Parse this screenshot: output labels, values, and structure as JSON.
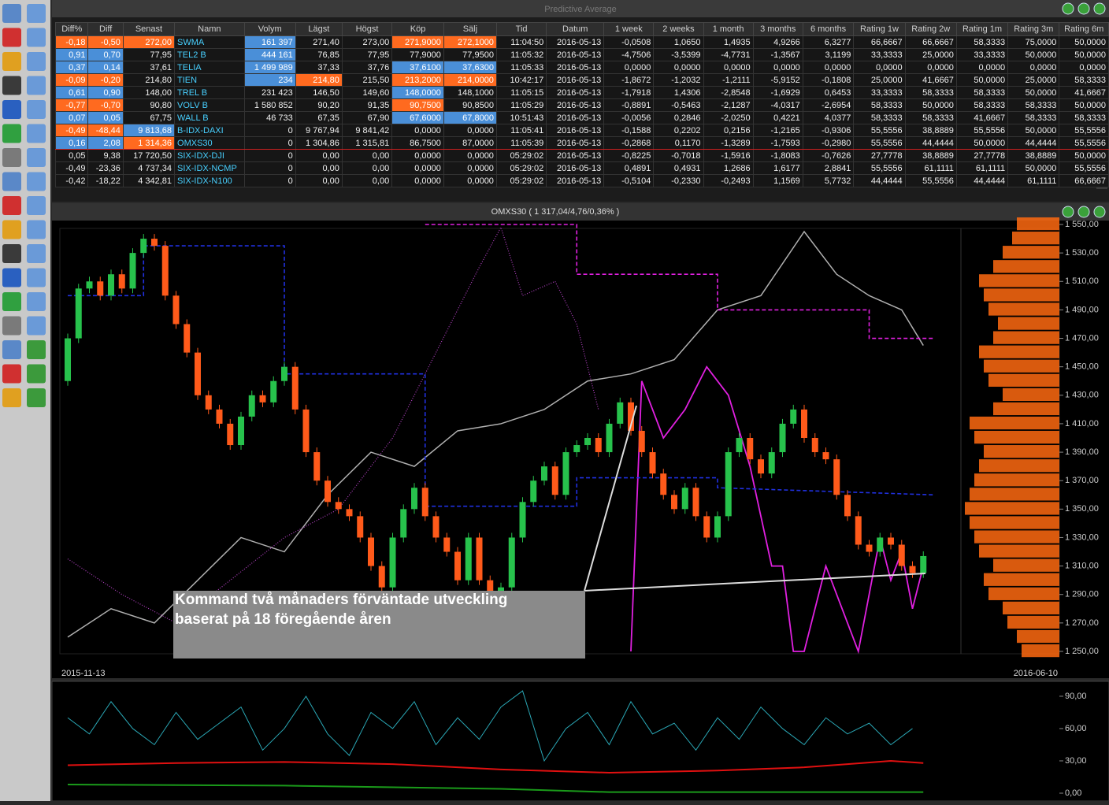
{
  "window_title": "Predictive Average",
  "table": {
    "columns": [
      "Diff%",
      "Diff",
      "Senast",
      "Namn",
      "Volym",
      "Lägst",
      "Högst",
      "Köp",
      "Sälj",
      "Tid",
      "Datum",
      "1 week",
      "2 weeks",
      "1 month",
      "3 months",
      "6 months",
      "Rating 1w",
      "Rating 2w",
      "Rating 1m",
      "Rating 3m",
      "Rating 6m"
    ],
    "rows": [
      [
        "-0,18",
        "-0,50",
        "272,00",
        "SWMA",
        "161 397",
        "271,40",
        "273,00",
        "271,9000",
        "272,1000",
        "11:04:50",
        "2016-05-13",
        "-0,0508",
        "1,0650",
        "1,4935",
        "4,9266",
        "6,3277",
        "66,6667",
        "66,6667",
        "58,3333",
        "75,0000",
        "50,0000"
      ],
      [
        "0,91",
        "0,70",
        "77,95",
        "TEL2 B",
        "444 161",
        "76,85",
        "77,95",
        "77,9000",
        "77,9500",
        "11:05:32",
        "2016-05-13",
        "-4,7506",
        "-3,5399",
        "-4,7731",
        "-1,3567",
        "3,1199",
        "33,3333",
        "25,0000",
        "33,3333",
        "50,0000",
        "50,0000"
      ],
      [
        "0,37",
        "0,14",
        "37,61",
        "TELIA",
        "1 499 989",
        "37,33",
        "37,76",
        "37,6100",
        "37,6300",
        "11:05:33",
        "2016-05-13",
        "0,0000",
        "0,0000",
        "0,0000",
        "0,0000",
        "0,0000",
        "0,0000",
        "0,0000",
        "0,0000",
        "0,0000",
        "0,0000"
      ],
      [
        "-0,09",
        "-0,20",
        "214,80",
        "TIEN",
        "234",
        "214,80",
        "215,50",
        "213,2000",
        "214,0000",
        "10:42:17",
        "2016-05-13",
        "-1,8672",
        "-1,2032",
        "-1,2111",
        "-5,9152",
        "-0,1808",
        "25,0000",
        "41,6667",
        "50,0000",
        "25,0000",
        "58,3333"
      ],
      [
        "0,61",
        "0,90",
        "148,00",
        "TREL B",
        "231 423",
        "146,50",
        "149,60",
        "148,0000",
        "148,1000",
        "11:05:15",
        "2016-05-13",
        "-1,7918",
        "1,4306",
        "-2,8548",
        "-1,6929",
        "0,6453",
        "33,3333",
        "58,3333",
        "58,3333",
        "50,0000",
        "41,6667"
      ],
      [
        "-0,77",
        "-0,70",
        "90,80",
        "VOLV B",
        "1 580 852",
        "90,20",
        "91,35",
        "90,7500",
        "90,8500",
        "11:05:29",
        "2016-05-13",
        "-0,8891",
        "-0,5463",
        "-2,1287",
        "-4,0317",
        "-2,6954",
        "58,3333",
        "50,0000",
        "58,3333",
        "58,3333",
        "50,0000"
      ],
      [
        "0,07",
        "0,05",
        "67,75",
        "WALL B",
        "46 733",
        "67,35",
        "67,90",
        "67,6000",
        "67,8000",
        "10:51:43",
        "2016-05-13",
        "-0,0056",
        "0,2846",
        "-2,0250",
        "0,4221",
        "4,0377",
        "58,3333",
        "58,3333",
        "41,6667",
        "58,3333",
        "58,3333"
      ],
      [
        "-0,49",
        "-48,44",
        "9 813,68",
        "B-IDX-DAXI",
        "0",
        "9 767,94",
        "9 841,42",
        "0,0000",
        "0,0000",
        "11:05:41",
        "2016-05-13",
        "-0,1588",
        "0,2202",
        "0,2156",
        "-1,2165",
        "-0,9306",
        "55,5556",
        "38,8889",
        "55,5556",
        "50,0000",
        "55,5556"
      ],
      [
        "0,16",
        "2,08",
        "1 314,36",
        "OMXS30",
        "0",
        "1 304,86",
        "1 315,81",
        "86,7500",
        "87,0000",
        "11:05:39",
        "2016-05-13",
        "-0,2868",
        "0,1170",
        "-1,3289",
        "-1,7593",
        "-0,2980",
        "55,5556",
        "44,4444",
        "50,0000",
        "44,4444",
        "55,5556"
      ],
      [
        "0,05",
        "9,38",
        "17 720,50",
        "SIX-IDX-DJI",
        "0",
        "0,00",
        "0,00",
        "0,0000",
        "0,0000",
        "05:29:02",
        "2016-05-13",
        "-0,8225",
        "-0,7018",
        "-1,5916",
        "-1,8083",
        "-0,7626",
        "27,7778",
        "38,8889",
        "27,7778",
        "38,8889",
        "50,0000"
      ],
      [
        "-0,49",
        "-23,36",
        "4 737,34",
        "SIX-IDX-NCMP",
        "0",
        "0,00",
        "0,00",
        "0,0000",
        "0,0000",
        "05:29:02",
        "2016-05-13",
        "0,4891",
        "0,4931",
        "1,2686",
        "1,6177",
        "2,8841",
        "55,5556",
        "61,1111",
        "61,1111",
        "50,0000",
        "55,5556"
      ],
      [
        "-0,42",
        "-18,22",
        "4 342,81",
        "SIX-IDX-N100",
        "0",
        "0,00",
        "0,00",
        "0,0000",
        "0,0000",
        "05:29:02",
        "2016-05-13",
        "-0,5104",
        "-0,2330",
        "-0,2493",
        "1,1569",
        "5,7732",
        "44,4444",
        "55,5556",
        "44,4444",
        "61,1111",
        "66,6667"
      ]
    ]
  },
  "chart_data": [
    {
      "type": "candlestick",
      "title": "OMXS30 ( 1 317,04/4,76/0,36% )",
      "date_labels": [
        "2015-11-13",
        "2016-06-10"
      ],
      "annotation": [
        "Kommand två månaders förväntade utveckling",
        "baserat på 18 föregående åren"
      ],
      "ylim": [
        1250,
        1550
      ],
      "yticks": [
        {
          "value": 1550,
          "label": "1 550,00"
        },
        {
          "value": 1530,
          "label": "1 530,00"
        },
        {
          "value": 1510,
          "label": "1 510,00"
        },
        {
          "value": 1490,
          "label": "1 490,00"
        },
        {
          "value": 1470,
          "label": "1 470,00"
        },
        {
          "value": 1450,
          "label": "1 450,00"
        },
        {
          "value": 1430,
          "label": "1 430,00"
        },
        {
          "value": 1410,
          "label": "1 410,00"
        },
        {
          "value": 1390,
          "label": "1 390,00"
        },
        {
          "value": 1370,
          "label": "1 370,00"
        },
        {
          "value": 1350,
          "label": "1 350,00"
        },
        {
          "value": 1330,
          "label": "1 330,00"
        },
        {
          "value": 1310,
          "label": "1 310,00"
        },
        {
          "value": 1290,
          "label": "1 290,00"
        },
        {
          "value": 1270,
          "label": "1 270,00"
        },
        {
          "value": 1250,
          "label": "1 250,00"
        }
      ],
      "up_color": "#27c24c",
      "down_color": "#ff5a1a",
      "open": [
        1440,
        1470,
        1505,
        1510,
        1500,
        1515,
        1505,
        1530,
        1540,
        1535,
        1500,
        1480,
        1460,
        1430,
        1420,
        1410,
        1395,
        1415,
        1430,
        1425,
        1440,
        1450,
        1420,
        1390,
        1370,
        1355,
        1350,
        1345,
        1330,
        1310,
        1295,
        1330,
        1350,
        1365,
        1345,
        1330,
        1320,
        1300,
        1330,
        1300,
        1285,
        1295,
        1330,
        1355,
        1370,
        1380,
        1360,
        1390,
        1395,
        1400,
        1390,
        1410,
        1425,
        1405,
        1390,
        1375,
        1360,
        1350,
        1365,
        1345,
        1330,
        1345,
        1390,
        1400,
        1385,
        1375,
        1390,
        1410,
        1420,
        1400,
        1390,
        1385,
        1360,
        1345,
        1325,
        1320,
        1330,
        1325,
        1310,
        1305
      ],
      "close": [
        1470,
        1505,
        1510,
        1500,
        1515,
        1505,
        1530,
        1540,
        1535,
        1500,
        1480,
        1460,
        1430,
        1420,
        1410,
        1395,
        1415,
        1430,
        1425,
        1440,
        1450,
        1420,
        1390,
        1370,
        1355,
        1350,
        1345,
        1330,
        1310,
        1295,
        1330,
        1350,
        1365,
        1345,
        1330,
        1320,
        1300,
        1330,
        1300,
        1285,
        1295,
        1330,
        1355,
        1370,
        1380,
        1360,
        1390,
        1395,
        1400,
        1390,
        1410,
        1425,
        1405,
        1390,
        1375,
        1360,
        1350,
        1365,
        1345,
        1330,
        1345,
        1390,
        1400,
        1385,
        1375,
        1390,
        1410,
        1420,
        1400,
        1390,
        1385,
        1360,
        1345,
        1325,
        1320,
        1330,
        1325,
        1310,
        1305,
        1317
      ],
      "lines": [
        {
          "color": "#b0b0b0",
          "dash": "none",
          "width": 1.5,
          "x": [
            0,
            4,
            8,
            12,
            16,
            20,
            24,
            28,
            32,
            36,
            40,
            44,
            48,
            52,
            56,
            60,
            64,
            68,
            71,
            74,
            77,
            79
          ],
          "values": [
            1260,
            1280,
            1270,
            1300,
            1330,
            1320,
            1360,
            1390,
            1380,
            1405,
            1410,
            1420,
            1440,
            1445,
            1455,
            1490,
            1500,
            1545,
            1515,
            1500,
            1490,
            1465
          ]
        },
        {
          "color": "#b040c0",
          "dash": "1 2",
          "width": 1.2,
          "x": [
            0,
            5,
            10,
            15,
            20,
            25,
            30,
            34,
            38,
            40,
            42,
            45,
            47,
            49
          ],
          "values": [
            1315,
            1290,
            1270,
            1300,
            1330,
            1350,
            1400,
            1460,
            1520,
            1548,
            1500,
            1510,
            1480,
            1420
          ]
        },
        {
          "color": "#e020e0",
          "dash": "none",
          "width": 1.8,
          "x": [
            52,
            53,
            55,
            57,
            59,
            61,
            63,
            65,
            66,
            67,
            68,
            70,
            72,
            73,
            75,
            76,
            77,
            78,
            79
          ],
          "values": [
            1250,
            1440,
            1400,
            1420,
            1450,
            1430,
            1380,
            1310,
            1310,
            1250,
            1250,
            1310,
            1270,
            1250,
            1330,
            1300,
            1320,
            1280,
            1310
          ]
        },
        {
          "color": "#e020e0",
          "dash": "5 3",
          "width": 1.6,
          "x": [
            33,
            47,
            47,
            60,
            60,
            74,
            74,
            80
          ],
          "values": [
            1550,
            1550,
            1515,
            1515,
            1490,
            1490,
            1470,
            1470
          ]
        },
        {
          "color": "#2030e0",
          "dash": "5 3",
          "width": 1.6,
          "x": [
            0,
            7,
            7,
            20,
            20,
            33,
            33,
            47,
            47,
            60,
            60,
            80
          ],
          "values": [
            1500,
            1500,
            1535,
            1535,
            1445,
            1445,
            1352,
            1352,
            1372,
            1372,
            1365,
            1360
          ]
        }
      ],
      "volume_profile": {
        "color": "#ff6a10",
        "levels": [
          1250,
          1260,
          1270,
          1280,
          1290,
          1300,
          1310,
          1320,
          1330,
          1340,
          1350,
          1360,
          1370,
          1380,
          1390,
          1400,
          1410,
          1420,
          1430,
          1440,
          1450,
          1460,
          1470,
          1480,
          1490,
          1500,
          1510,
          1520,
          1530,
          1540,
          1550
        ],
        "values": [
          40,
          45,
          55,
          60,
          75,
          80,
          70,
          85,
          90,
          95,
          100,
          95,
          90,
          85,
          80,
          90,
          95,
          70,
          60,
          75,
          80,
          85,
          70,
          65,
          75,
          80,
          85,
          70,
          60,
          50,
          45
        ]
      }
    },
    {
      "type": "line",
      "ylim": [
        0,
        98
      ],
      "yticks": [
        {
          "value": 0,
          "label": "0,00"
        },
        {
          "value": 30,
          "label": "30,00"
        },
        {
          "value": 60,
          "label": "60,00"
        },
        {
          "value": 90,
          "label": "90,00"
        }
      ],
      "series": [
        {
          "color": "#2aa7b5",
          "x": [
            0,
            2,
            4,
            6,
            8,
            10,
            12,
            14,
            16,
            18,
            20,
            22,
            24,
            26,
            28,
            30,
            32,
            34,
            36,
            38,
            40,
            42,
            44,
            46,
            48,
            50,
            52,
            54,
            56,
            58,
            60,
            62,
            64,
            66,
            68,
            70,
            72,
            74,
            76,
            78
          ],
          "values": [
            70,
            55,
            85,
            60,
            45,
            75,
            50,
            65,
            80,
            40,
            60,
            90,
            55,
            35,
            75,
            60,
            85,
            45,
            70,
            50,
            80,
            95,
            30,
            60,
            75,
            45,
            85,
            55,
            65,
            40,
            70,
            50,
            80,
            60,
            45,
            70,
            55,
            65,
            45,
            60
          ]
        },
        {
          "color": "#e01010",
          "x": [
            0,
            10,
            20,
            30,
            40,
            50,
            60,
            68,
            72,
            76,
            79
          ],
          "values": [
            26,
            28,
            29,
            27,
            22,
            19,
            21,
            24,
            27,
            30,
            28
          ]
        },
        {
          "color": "#1a9a1a",
          "x": [
            0,
            20,
            40,
            50,
            79
          ],
          "values": [
            8,
            7,
            4,
            1,
            1
          ]
        }
      ]
    }
  ]
}
